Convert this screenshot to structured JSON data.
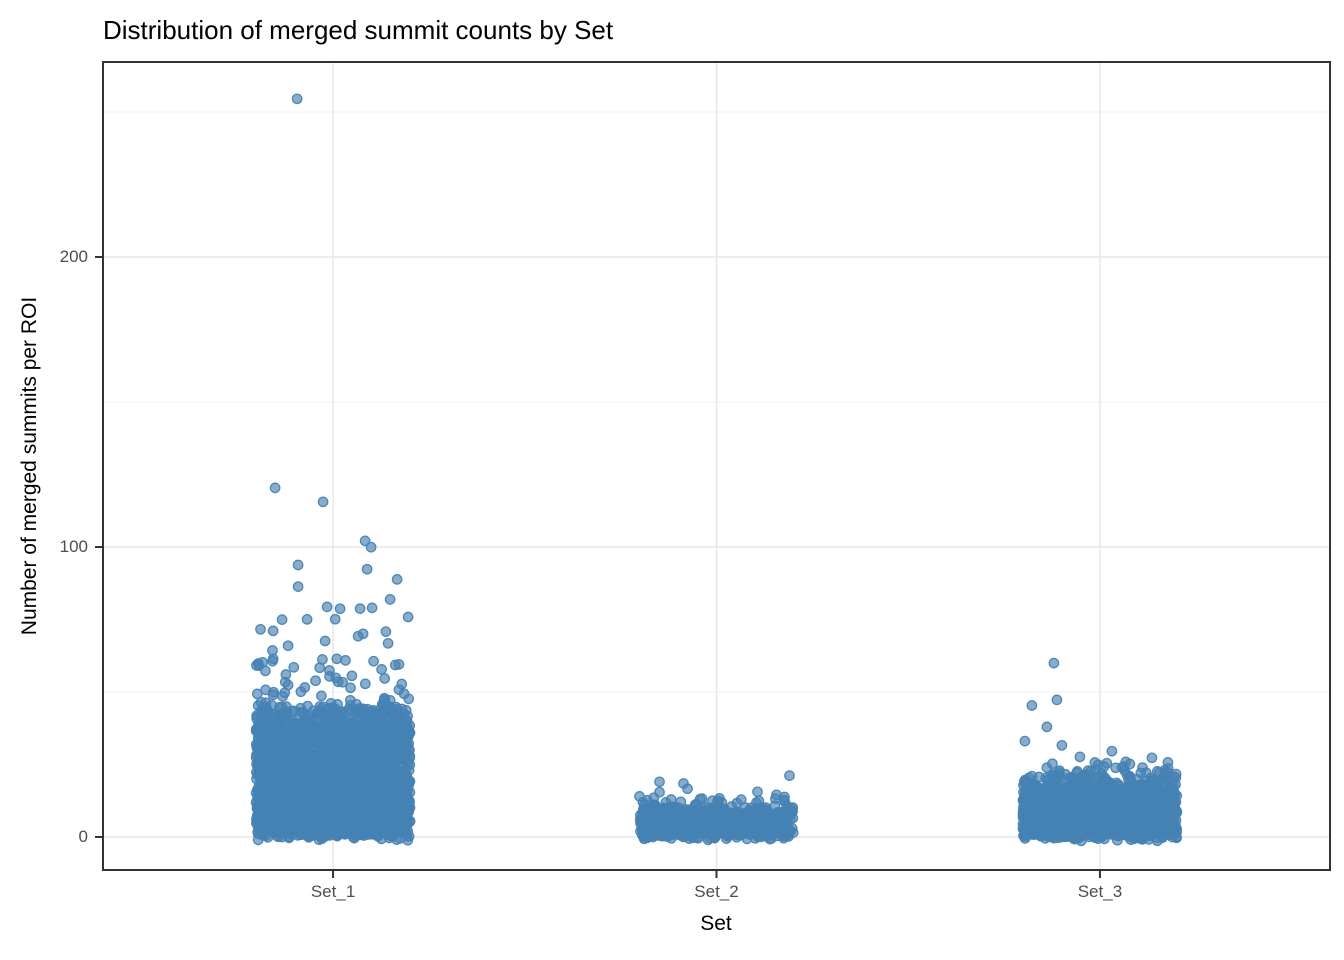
{
  "chart_data": {
    "type": "scatter",
    "variant": "jittered-strip-plot",
    "title": "Distribution of merged summit counts by Set",
    "xlabel": "Set",
    "ylabel": "Number of merged summits per ROI",
    "categories": [
      "Set_1",
      "Set_2",
      "Set_3"
    ],
    "x_tick_labels": [
      "Set_1",
      "Set_2",
      "Set_3"
    ],
    "y_tick_labels": [
      "0",
      "100",
      "200"
    ],
    "y_ticks_major": [
      0,
      100,
      200
    ],
    "y_ticks_minor": [
      50,
      150,
      250
    ],
    "ylim": [
      -11,
      267
    ],
    "grid": true,
    "legend": false,
    "point_color": "#4682B4",
    "point_alpha": 0.66,
    "colors": {
      "panel_border": "#333333",
      "grid_major": "#E7E7E7",
      "grid_minor": "#F1F1F1",
      "tick_mark": "#333333",
      "tick_text": "#4d4d4d",
      "title_text": "#000000"
    },
    "series": [
      {
        "name": "Set_1",
        "n_approx": 2660,
        "dense_value_range": [
          0,
          45
        ],
        "max_value": 255,
        "dense_segments": [
          {
            "from": 0,
            "to": 38,
            "n": 2400
          },
          {
            "from": 38,
            "to": 45,
            "n": 180
          },
          {
            "from": 45,
            "to": 55,
            "n": 36
          },
          {
            "from": 55,
            "to": 65,
            "n": 20
          },
          {
            "from": 65,
            "to": 78,
            "n": 6
          }
        ],
        "outliers": [
          [
            255,
            -36
          ],
          [
            120,
            -58
          ],
          [
            116,
            -10
          ],
          [
            102,
            32
          ],
          [
            100,
            38
          ],
          [
            94,
            -35
          ],
          [
            92,
            34
          ],
          [
            89,
            64
          ],
          [
            86,
            -35
          ],
          [
            82,
            57
          ],
          [
            79,
            -6
          ],
          [
            79,
            7
          ],
          [
            79,
            39
          ],
          [
            76,
            75
          ],
          [
            75,
            -26
          ],
          [
            71,
            -60
          ],
          [
            70,
            30
          ],
          [
            68,
            -8
          ],
          [
            67,
            55
          ],
          [
            66,
            -45
          ]
        ]
      },
      {
        "name": "Set_2",
        "n_approx": 685,
        "dense_value_range": [
          0,
          13
        ],
        "max_value": 21,
        "dense_segments": [
          {
            "from": 0,
            "to": 9,
            "n": 620
          },
          {
            "from": 9,
            "to": 13,
            "n": 55
          }
        ],
        "outliers": [
          [
            21,
            73
          ],
          [
            19,
            -57
          ],
          [
            18,
            -33
          ],
          [
            17,
            -29
          ],
          [
            16,
            41
          ],
          [
            15,
            -57
          ],
          [
            15,
            60
          ],
          [
            14,
            68
          ],
          [
            14,
            -77
          ],
          [
            13,
            3
          ]
        ]
      },
      {
        "name": "Set_3",
        "n_approx": 1390,
        "dense_value_range": [
          0,
          22
        ],
        "max_value": 60,
        "dense_segments": [
          {
            "from": 0,
            "to": 17,
            "n": 1250
          },
          {
            "from": 17,
            "to": 22,
            "n": 110
          },
          {
            "from": 22,
            "to": 25,
            "n": 18
          }
        ],
        "outliers": [
          [
            60,
            -46
          ],
          [
            47,
            -43
          ],
          [
            45,
            -68
          ],
          [
            38,
            -53
          ],
          [
            33,
            -75
          ],
          [
            32,
            -38
          ],
          [
            30,
            12
          ],
          [
            28,
            -20
          ],
          [
            27,
            52
          ],
          [
            26,
            68
          ],
          [
            26,
            -5
          ],
          [
            25,
            30
          ]
        ]
      }
    ]
  }
}
